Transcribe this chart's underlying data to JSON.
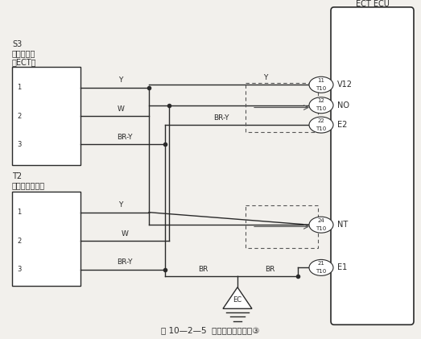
{
  "title": "图 10—2—5  自动变速器电路图③",
  "bg_color": "#f2f0ec",
  "line_color": "#2a2a2a",
  "dashed_color": "#555555",
  "s3_label": "S3",
  "s3_sub1": "速度传感器",
  "s3_sub2": "（ECT）",
  "t2_label": "T2",
  "t2_sub1": "涡轮转速传感器",
  "ecu_label": "ECT ECU",
  "pins": [
    {
      "num": "11",
      "tag": "T10",
      "label": "V12",
      "yf": 0.87
    },
    {
      "num": "12",
      "tag": "T10",
      "label": "NO",
      "yf": 0.78
    },
    {
      "num": "22",
      "tag": "T10",
      "label": "E2",
      "yf": 0.695
    },
    {
      "num": "24",
      "tag": "T10",
      "label": "NT",
      "yf": 0.48
    },
    {
      "num": "21",
      "tag": "T10",
      "label": "E1",
      "yf": 0.37
    }
  ]
}
